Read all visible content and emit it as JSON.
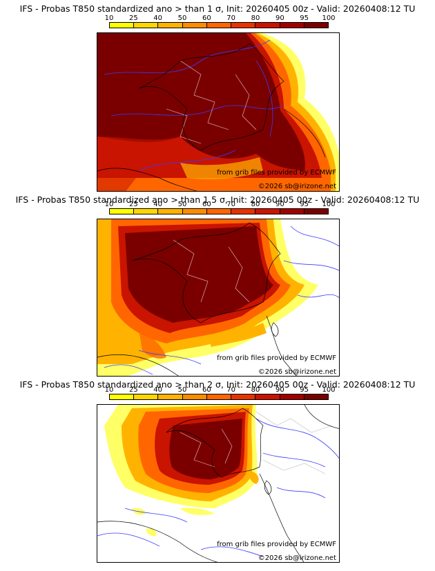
{
  "colorbar": {
    "ticks": [
      "10",
      "25",
      "40",
      "50",
      "60",
      "70",
      "80",
      "90",
      "95",
      "100"
    ],
    "colors": [
      "#ffff00",
      "#ffd700",
      "#ffb300",
      "#ff8c00",
      "#ff6600",
      "#e63300",
      "#c81400",
      "#a00000",
      "#7a0000"
    ]
  },
  "panels": [
    {
      "title": "IFS - Probas T850  standardized ano > than 1 σ, Init: 20260405 00z - Valid: 20260408:12 TU",
      "threshold_sigma": "1",
      "credit": "from grib files provided by ECMWF",
      "copyright": "©2026 sb@irizone.net"
    },
    {
      "title": "IFS - Probas T850  standardized ano > than 1.5 σ, Init: 20260405 00z - Valid: 20260408:12 TU",
      "threshold_sigma": "1.5",
      "credit": "from grib files provided by ECMWF",
      "copyright": "©2026 sb@irizone.net"
    },
    {
      "title": "IFS - Probas T850  standardized ano > than 2 σ, Init: 20260405 00z - Valid: 20260408:12 TU",
      "threshold_sigma": "2",
      "credit": "from grib files provided by ECMWF",
      "copyright": "©2026 sb@irizone.net"
    }
  ]
}
